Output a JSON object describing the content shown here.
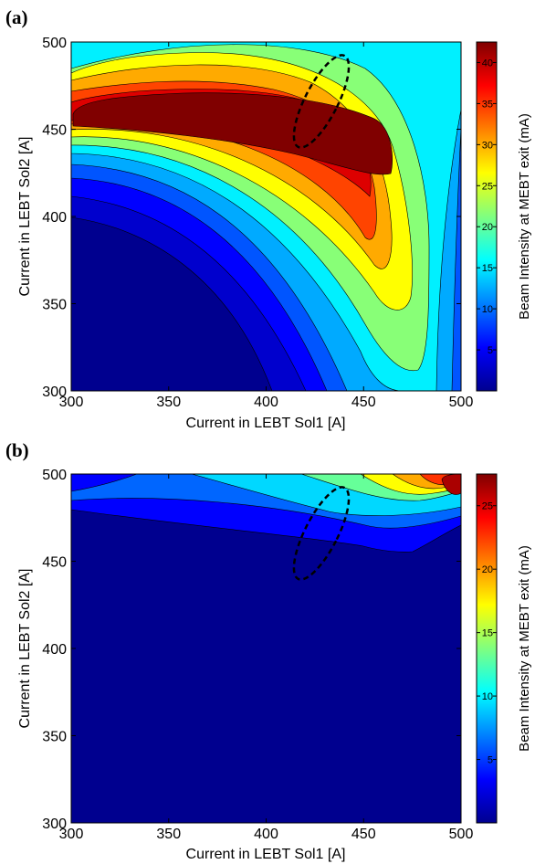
{
  "chart_data": [
    {
      "panel_label": "(a)",
      "type": "heatmap",
      "subtype": "filled-contour",
      "xlabel": "Current in LEBT Sol1 [A]",
      "ylabel": "Current in LEBT Sol2 [A]",
      "xlim": [
        300,
        500
      ],
      "ylim": [
        300,
        500
      ],
      "xticks": [
        "300",
        "350",
        "400",
        "450",
        "500"
      ],
      "yticks": [
        "300",
        "350",
        "400",
        "450",
        "500"
      ],
      "colorbar": {
        "label": "Beam Intensity at MEBT exit (mA)",
        "range": [
          0,
          42.5
        ],
        "ticks": [
          "5",
          "10",
          "15",
          "20",
          "25",
          "30",
          "35",
          "40"
        ],
        "tick_values": [
          5,
          10,
          15,
          20,
          25,
          30,
          35,
          40
        ]
      },
      "peak": {
        "x": 375,
        "y": 452,
        "value": 42
      },
      "annotation": {
        "shape": "dashed-ellipse",
        "x1": 415,
        "y1": 442,
        "x2": 441,
        "y2": 490
      }
    },
    {
      "panel_label": "(b)",
      "type": "heatmap",
      "subtype": "filled-contour",
      "xlabel": "Current in LEBT Sol1 [A]",
      "ylabel": "Current in LEBT Sol2 [A]",
      "xlim": [
        300,
        500
      ],
      "ylim": [
        300,
        500
      ],
      "xticks": [
        "300",
        "350",
        "400",
        "450",
        "500"
      ],
      "yticks": [
        "300",
        "350",
        "400",
        "450",
        "500"
      ],
      "colorbar": {
        "label": "Beam Intensity at MEBT exit (mA)",
        "range": [
          0,
          27.5
        ],
        "ticks": [
          "5",
          "10",
          "15",
          "20",
          "25"
        ],
        "tick_values": [
          5,
          10,
          15,
          20,
          25
        ]
      },
      "peak": {
        "x": 500,
        "y": 487,
        "value": 27
      },
      "annotation": {
        "shape": "dashed-ellipse",
        "x1": 415,
        "y1": 442,
        "x2": 441,
        "y2": 490
      }
    }
  ]
}
